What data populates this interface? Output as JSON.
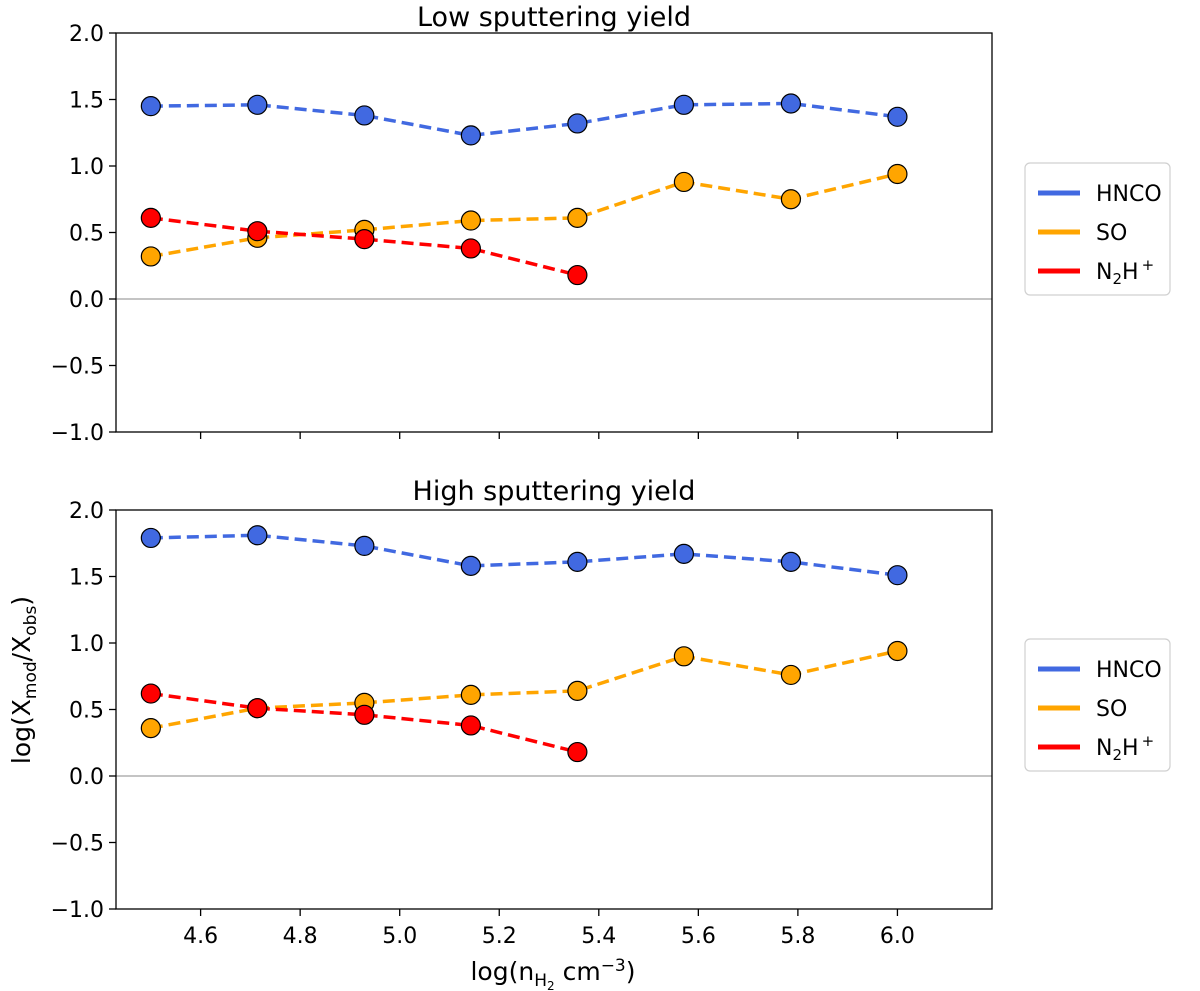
{
  "chart_data": [
    {
      "type": "line",
      "title": "Low sputtering yield",
      "xlabel": "",
      "ylabel": "",
      "xlim": [
        4.43,
        6.19
      ],
      "ylim": [
        -1.0,
        2.0
      ],
      "x_ticks": [
        4.6,
        4.8,
        5.0,
        5.2,
        5.4,
        5.6,
        5.8,
        6.0
      ],
      "x_tick_labels_shown": false,
      "y_ticks": [
        -1.0,
        -0.5,
        0.0,
        0.5,
        1.0,
        1.5,
        2.0
      ],
      "y_tick_labels": [
        "−1.0",
        "−0.5",
        "0.0",
        "0.5",
        "1.0",
        "1.5",
        "2.0"
      ],
      "reference_line_y": 0.0,
      "grid": false,
      "legend_position": "right",
      "series": [
        {
          "name": "HNCO",
          "color": "#4169e1",
          "x": [
            4.5,
            4.714,
            4.929,
            5.143,
            5.357,
            5.571,
            5.786,
            6.0
          ],
          "values": [
            1.45,
            1.46,
            1.38,
            1.23,
            1.32,
            1.46,
            1.47,
            1.37
          ]
        },
        {
          "name": "SO",
          "color": "#ffa500",
          "x": [
            4.5,
            4.714,
            4.929,
            5.143,
            5.357,
            5.571,
            5.786,
            6.0
          ],
          "values": [
            0.32,
            0.46,
            0.52,
            0.59,
            0.61,
            0.88,
            0.75,
            0.94
          ]
        },
        {
          "name": "N₂H⁺",
          "color": "#ff0000",
          "x": [
            4.5,
            4.714,
            4.929,
            5.143,
            5.357
          ],
          "values": [
            0.61,
            0.51,
            0.45,
            0.38,
            0.18
          ]
        }
      ]
    },
    {
      "type": "line",
      "title": "High sputtering yield",
      "xlabel": "log(n_H2 cm⁻³)",
      "ylabel": "log(X_mod/X_obs)",
      "xlim": [
        4.43,
        6.19
      ],
      "ylim": [
        -1.0,
        2.0
      ],
      "x_ticks": [
        4.6,
        4.8,
        5.0,
        5.2,
        5.4,
        5.6,
        5.8,
        6.0
      ],
      "x_tick_labels": [
        "4.6",
        "4.8",
        "5.0",
        "5.2",
        "5.4",
        "5.6",
        "5.8",
        "6.0"
      ],
      "x_tick_labels_shown": true,
      "y_ticks": [
        -1.0,
        -0.5,
        0.0,
        0.5,
        1.0,
        1.5,
        2.0
      ],
      "y_tick_labels": [
        "−1.0",
        "−0.5",
        "0.0",
        "0.5",
        "1.0",
        "1.5",
        "2.0"
      ],
      "reference_line_y": 0.0,
      "grid": false,
      "legend_position": "right",
      "series": [
        {
          "name": "HNCO",
          "color": "#4169e1",
          "x": [
            4.5,
            4.714,
            4.929,
            5.143,
            5.357,
            5.571,
            5.786,
            6.0
          ],
          "values": [
            1.79,
            1.81,
            1.73,
            1.58,
            1.61,
            1.67,
            1.61,
            1.51
          ]
        },
        {
          "name": "SO",
          "color": "#ffa500",
          "x": [
            4.5,
            4.714,
            4.929,
            5.143,
            5.357,
            5.571,
            5.786,
            6.0
          ],
          "values": [
            0.36,
            0.51,
            0.55,
            0.61,
            0.64,
            0.9,
            0.76,
            0.94
          ]
        },
        {
          "name": "N₂H⁺",
          "color": "#ff0000",
          "x": [
            4.5,
            4.714,
            4.929,
            5.143,
            5.357
          ],
          "values": [
            0.62,
            0.51,
            0.46,
            0.38,
            0.18
          ]
        }
      ]
    }
  ],
  "axis_text": {
    "y_main": "log(X",
    "y_sub1": "mod",
    "y_mid": "/X",
    "y_sub2": "obs",
    "y_end": ")",
    "x_main": "log(n",
    "x_sub": "H",
    "x_subsub": "2",
    "x_unit": " cm",
    "x_sup": "−3",
    "x_end": ")"
  },
  "legend_text": {
    "n2h_base": "N",
    "n2h_sub": "2",
    "n2h_h": "H",
    "n2h_sup": "+"
  }
}
